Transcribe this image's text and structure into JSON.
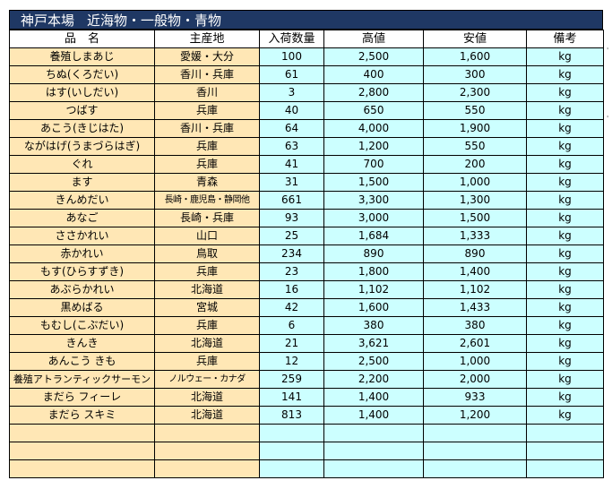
{
  "title": {
    "parts": [
      "神戸本場",
      "近海物・一般物・青物"
    ]
  },
  "table": {
    "headers": [
      "品　名",
      "主産地",
      "入荷数量",
      "高値",
      "安値",
      "備考"
    ],
    "rows": [
      [
        "養殖しまあじ",
        "愛媛・大分",
        "100",
        "2,500",
        "1,600",
        "kg"
      ],
      [
        "ちぬ(くろだい)",
        "香川・兵庫",
        "61",
        "400",
        "300",
        "kg"
      ],
      [
        "はす(いしだい)",
        "香川",
        "3",
        "2,800",
        "2,300",
        "kg"
      ],
      [
        "つばす",
        "兵庫",
        "40",
        "650",
        "550",
        "kg"
      ],
      [
        "あこう(きじはた)",
        "香川・兵庫",
        "64",
        "4,000",
        "1,900",
        "kg"
      ],
      [
        "ながはげ(うまづらはぎ)",
        "兵庫",
        "63",
        "1,200",
        "550",
        "kg"
      ],
      [
        "ぐれ",
        "兵庫",
        "41",
        "700",
        "200",
        "kg"
      ],
      [
        "ます",
        "青森",
        "31",
        "1,500",
        "1,000",
        "kg"
      ],
      [
        "きんめだい",
        "長崎・鹿児島・静岡他",
        "661",
        "3,300",
        "1,300",
        "kg"
      ],
      [
        "あなご",
        "長崎・兵庫",
        "93",
        "3,000",
        "1,500",
        "kg"
      ],
      [
        "ささかれい",
        "山口",
        "25",
        "1,684",
        "1,333",
        "kg"
      ],
      [
        "赤かれい",
        "鳥取",
        "234",
        "890",
        "890",
        "kg"
      ],
      [
        "もす(ひらすずき)",
        "兵庫",
        "23",
        "1,800",
        "1,400",
        "kg"
      ],
      [
        "あぶらかれい",
        "北海道",
        "16",
        "1,102",
        "1,102",
        "kg"
      ],
      [
        "黒めばる",
        "宮城",
        "42",
        "1,600",
        "1,433",
        "kg"
      ],
      [
        "もむし(こぶだい)",
        "兵庫",
        "6",
        "380",
        "380",
        "kg"
      ],
      [
        "きんき",
        "北海道",
        "21",
        "3,621",
        "2,601",
        "kg"
      ],
      [
        "あんこう きも",
        "兵庫",
        "12",
        "2,500",
        "1,000",
        "kg"
      ],
      [
        "養殖アトランティックサーモン",
        "ノルウェー・カナダ",
        "259",
        "2,200",
        "2,000",
        "kg"
      ],
      [
        "まだら フィーレ",
        "北海道",
        "141",
        "1,400",
        "933",
        "kg"
      ],
      [
        "まだら スキミ",
        "北海道",
        "813",
        "1,400",
        "1,200",
        "kg"
      ],
      [
        "",
        "",
        "",
        "",
        "",
        ""
      ],
      [
        "",
        "",
        "",
        "",
        "",
        ""
      ],
      [
        "",
        "",
        "",
        "",
        "",
        ""
      ]
    ]
  },
  "colors": {
    "title_bg": "#1f3864",
    "left_cells": "#ffe7b5",
    "right_cells": "#ccffff"
  }
}
